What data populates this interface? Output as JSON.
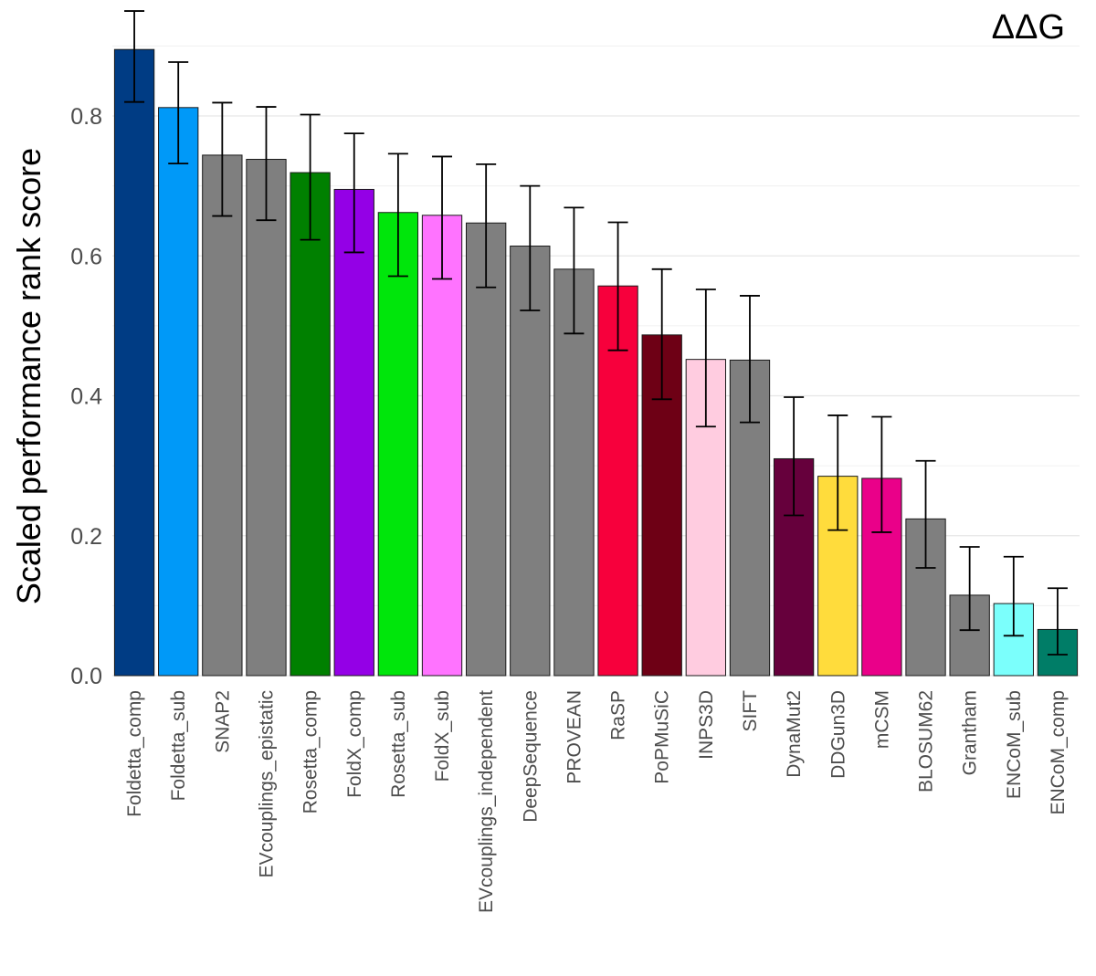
{
  "chart_data": {
    "type": "bar",
    "title": "ΔΔG",
    "xlabel": "",
    "ylabel": "Scaled performance rank score",
    "ylim": [
      0,
      0.9
    ],
    "yticks": [
      0.0,
      0.2,
      0.4,
      0.6,
      0.8
    ],
    "ytick_labels": [
      "0.0",
      "0.2",
      "0.4",
      "0.6",
      "0.8"
    ],
    "grid": true,
    "legend": "none",
    "categories": [
      "Foldetta_comp",
      "Foldetta_sub",
      "SNAP2",
      "EVcouplings_epistatic",
      "Rosetta_comp",
      "FoldX_comp",
      "Rosetta_sub",
      "FoldX_sub",
      "EVcouplings_independent",
      "DeepSequence",
      "PROVEAN",
      "RaSP",
      "PoPMuSiC",
      "INPS3D",
      "SIFT",
      "DynaMut2",
      "DDGun3D",
      "mCSM",
      "BLOSUM62",
      "Grantham",
      "ENCoM_sub",
      "ENCoM_comp"
    ],
    "values": [
      0.895,
      0.812,
      0.744,
      0.738,
      0.719,
      0.695,
      0.662,
      0.658,
      0.647,
      0.614,
      0.581,
      0.557,
      0.487,
      0.452,
      0.451,
      0.31,
      0.285,
      0.282,
      0.224,
      0.115,
      0.103,
      0.066
    ],
    "error_low": [
      0.82,
      0.732,
      0.657,
      0.651,
      0.623,
      0.605,
      0.571,
      0.567,
      0.555,
      0.522,
      0.489,
      0.465,
      0.395,
      0.356,
      0.362,
      0.229,
      0.208,
      0.205,
      0.154,
      0.065,
      0.057,
      0.03
    ],
    "error_high": [
      0.95,
      0.877,
      0.819,
      0.813,
      0.802,
      0.775,
      0.746,
      0.742,
      0.731,
      0.7,
      0.669,
      0.648,
      0.581,
      0.552,
      0.543,
      0.398,
      0.372,
      0.37,
      0.307,
      0.184,
      0.17,
      0.125
    ],
    "colors": [
      "#003c84",
      "#0099f8",
      "#7f7f7f",
      "#7f7f7f",
      "#008000",
      "#9400e6",
      "#00e60b",
      "#ff73ff",
      "#7f7f7f",
      "#7f7f7f",
      "#7f7f7f",
      "#f7003c",
      "#6e0015",
      "#ffcce0",
      "#7f7f7f",
      "#66003c",
      "#ffdc3c",
      "#ea0089",
      "#7f7f7f",
      "#7f7f7f",
      "#7bfffc",
      "#007d67"
    ]
  }
}
